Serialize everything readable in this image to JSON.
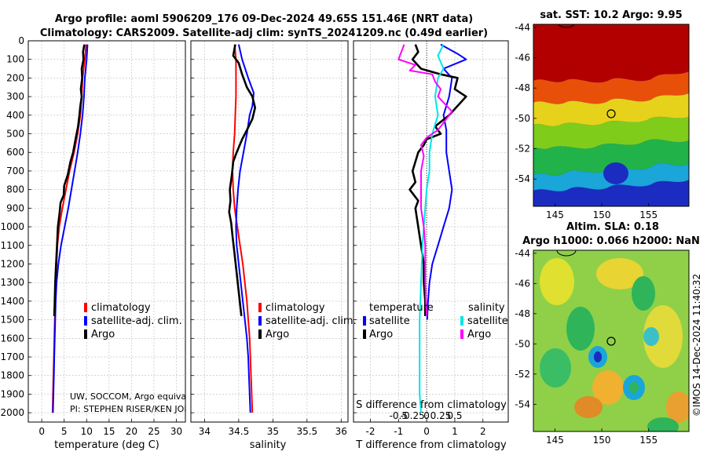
{
  "title": {
    "line1": "Argo profile: aoml 5906209_176 09-Dec-2024 49.65S 151.46E (NRT data)",
    "line2": "Climatology: CARS2009. Satellite-adj clim: synTS_20241209.nc (0.49d earlier)"
  },
  "colors": {
    "climatology": "#ff0000",
    "satellite": "#0000ff",
    "argo": "#000000",
    "sat_diff": "#00e5e5",
    "argo_sal_diff": "#ff00ff",
    "grid": "#bbbbbb"
  },
  "depth_ticks": [
    "0",
    "100",
    "200",
    "300",
    "400",
    "500",
    "600",
    "700",
    "800",
    "900",
    "1000",
    "1100",
    "1200",
    "1300",
    "1400",
    "1500",
    "1600",
    "1700",
    "1800",
    "1900",
    "2000"
  ],
  "annotation": {
    "line1": "UW, SOCCOM, Argo equivale",
    "line2": "PI: STEPHEN RISER/KEN JOHN"
  },
  "maps": {
    "sst": {
      "title": "sat. SST: 10.2 Argo: 9.95",
      "y_ticks": [
        "-44",
        "-46",
        "-48",
        "-50",
        "-52",
        "-54"
      ],
      "x_ticks": [
        "145",
        "150",
        "155"
      ]
    },
    "sla": {
      "title_line1": "Altim. SLA: 0.18",
      "title_line2": "Argo h1000: 0.066 h2000: NaN",
      "y_ticks": [
        "-44",
        "-46",
        "-48",
        "-50",
        "-52",
        "-54"
      ],
      "x_ticks": [
        "145",
        "150",
        "155"
      ]
    },
    "credit": "©IMOS 14-Dec-2024 11:40:32"
  },
  "chart_data": [
    {
      "type": "line",
      "name": "temperature",
      "xlabel": "temperature (deg C)",
      "ylabel": "",
      "xlim": [
        -3,
        32
      ],
      "ylim": [
        2050,
        0
      ],
      "x_ticks": [
        0,
        5,
        10,
        15,
        20,
        25,
        30
      ],
      "x_tick_labels": [
        "0",
        "5",
        "10",
        "15",
        "20",
        "25",
        "30"
      ],
      "legend": [
        "climatology",
        "satellite-adj. clim.",
        "Argo"
      ],
      "series": [
        {
          "name": "climatology",
          "color": "#ff0000",
          "points": [
            [
              9.9,
              20
            ],
            [
              9.6,
              100
            ],
            [
              9.1,
              200
            ],
            [
              8.9,
              300
            ],
            [
              8.6,
              400
            ],
            [
              8.0,
              500
            ],
            [
              7.2,
              600
            ],
            [
              6.2,
              700
            ],
            [
              5.4,
              800
            ],
            [
              4.6,
              900
            ],
            [
              3.9,
              1000
            ],
            [
              3.5,
              1100
            ],
            [
              3.3,
              1200
            ],
            [
              3.1,
              1300
            ],
            [
              3.0,
              1400
            ],
            [
              2.9,
              1500
            ],
            [
              2.8,
              1600
            ],
            [
              2.7,
              1700
            ],
            [
              2.6,
              1800
            ],
            [
              2.5,
              1900
            ],
            [
              2.4,
              2000
            ]
          ]
        },
        {
          "name": "satellite-adj. clim.",
          "color": "#0000ff",
          "points": [
            [
              10.2,
              20
            ],
            [
              10.0,
              100
            ],
            [
              9.6,
              200
            ],
            [
              9.4,
              300
            ],
            [
              9.1,
              400
            ],
            [
              8.6,
              500
            ],
            [
              8.0,
              600
            ],
            [
              7.3,
              700
            ],
            [
              6.6,
              800
            ],
            [
              5.9,
              900
            ],
            [
              5.1,
              1000
            ],
            [
              4.3,
              1100
            ],
            [
              3.7,
              1200
            ],
            [
              3.3,
              1300
            ],
            [
              3.1,
              1400
            ],
            [
              3.0,
              1500
            ],
            [
              2.9,
              1600
            ],
            [
              2.8,
              1700
            ],
            [
              2.7,
              1800
            ],
            [
              2.6,
              1900
            ],
            [
              2.5,
              2000
            ]
          ]
        },
        {
          "name": "Argo",
          "color": "#000000",
          "points": [
            [
              9.5,
              20
            ],
            [
              9.2,
              60
            ],
            [
              9.3,
              100
            ],
            [
              8.9,
              150
            ],
            [
              9.0,
              200
            ],
            [
              8.7,
              260
            ],
            [
              8.9,
              300
            ],
            [
              8.6,
              350
            ],
            [
              8.4,
              400
            ],
            [
              8.1,
              460
            ],
            [
              7.6,
              520
            ],
            [
              7.0,
              600
            ],
            [
              6.4,
              650
            ],
            [
              5.8,
              720
            ],
            [
              5.0,
              780
            ],
            [
              4.9,
              830
            ],
            [
              4.2,
              870
            ],
            [
              4.0,
              920
            ],
            [
              3.6,
              1000
            ],
            [
              3.4,
              1100
            ],
            [
              3.2,
              1200
            ],
            [
              3.0,
              1300
            ],
            [
              2.9,
              1400
            ],
            [
              2.8,
              1480
            ]
          ]
        }
      ]
    },
    {
      "type": "line",
      "name": "salinity",
      "xlabel": "salinity",
      "ylabel": "",
      "xlim": [
        33.8,
        36.1
      ],
      "ylim": [
        2050,
        0
      ],
      "x_ticks": [
        34,
        34.5,
        35,
        35.5,
        36
      ],
      "x_tick_labels": [
        "34",
        "34.5",
        "35",
        "35.5",
        "36"
      ],
      "legend": [
        "climatology",
        "satellite-adj. clim.",
        "Argo"
      ],
      "series": [
        {
          "name": "climatology",
          "color": "#ff0000",
          "points": [
            [
              34.44,
              20
            ],
            [
              34.46,
              100
            ],
            [
              34.46,
              200
            ],
            [
              34.46,
              300
            ],
            [
              34.45,
              400
            ],
            [
              34.44,
              500
            ],
            [
              34.42,
              600
            ],
            [
              34.41,
              700
            ],
            [
              34.42,
              800
            ],
            [
              34.44,
              900
            ],
            [
              34.48,
              1000
            ],
            [
              34.52,
              1100
            ],
            [
              34.56,
              1200
            ],
            [
              34.59,
              1300
            ],
            [
              34.62,
              1400
            ],
            [
              34.64,
              1500
            ],
            [
              34.66,
              1600
            ],
            [
              34.67,
              1700
            ],
            [
              34.68,
              1800
            ],
            [
              34.69,
              1900
            ],
            [
              34.7,
              2000
            ]
          ]
        },
        {
          "name": "satellite-adj. clim.",
          "color": "#0000ff",
          "points": [
            [
              34.5,
              20
            ],
            [
              34.55,
              100
            ],
            [
              34.64,
              200
            ],
            [
              34.72,
              280
            ],
            [
              34.7,
              350
            ],
            [
              34.66,
              400
            ],
            [
              34.62,
              500
            ],
            [
              34.57,
              600
            ],
            [
              34.52,
              700
            ],
            [
              34.49,
              800
            ],
            [
              34.47,
              900
            ],
            [
              34.46,
              1000
            ],
            [
              34.47,
              1100
            ],
            [
              34.5,
              1200
            ],
            [
              34.53,
              1300
            ],
            [
              34.56,
              1400
            ],
            [
              34.59,
              1500
            ],
            [
              34.62,
              1600
            ],
            [
              34.64,
              1700
            ],
            [
              34.65,
              1800
            ],
            [
              34.66,
              1900
            ],
            [
              34.67,
              2000
            ]
          ]
        },
        {
          "name": "Argo",
          "color": "#000000",
          "points": [
            [
              34.45,
              20
            ],
            [
              34.42,
              80
            ],
            [
              34.5,
              120
            ],
            [
              34.55,
              180
            ],
            [
              34.62,
              250
            ],
            [
              34.7,
              300
            ],
            [
              34.74,
              360
            ],
            [
              34.7,
              420
            ],
            [
              34.62,
              480
            ],
            [
              34.55,
              530
            ],
            [
              34.47,
              600
            ],
            [
              34.42,
              650
            ],
            [
              34.4,
              720
            ],
            [
              34.37,
              800
            ],
            [
              34.38,
              860
            ],
            [
              34.36,
              920
            ],
            [
              34.39,
              980
            ],
            [
              34.41,
              1050
            ],
            [
              34.44,
              1150
            ],
            [
              34.47,
              1250
            ],
            [
              34.5,
              1350
            ],
            [
              34.53,
              1450
            ],
            [
              34.54,
              1480
            ]
          ]
        }
      ]
    },
    {
      "type": "line",
      "name": "differences",
      "xlabel": "T difference from climatology",
      "ylabel": "",
      "top_xlabel": "S difference from climatology",
      "xlim": [
        -2.6,
        2.9
      ],
      "ylim": [
        2050,
        0
      ],
      "x_ticks": [
        -2,
        -1,
        0,
        1,
        2
      ],
      "x_tick_labels": [
        "-2",
        "-1",
        "0",
        "1",
        "2"
      ],
      "top_ticks": [
        -1,
        -0.5,
        0,
        0.5,
        1
      ],
      "top_tick_labels": [
        "-0.5",
        "-0.25",
        "0",
        "0.25",
        "0.5"
      ],
      "legend_temperature_header": "temperature",
      "legend_salinity_header": "salinity",
      "legend_temperature": [
        "satellite",
        "Argo"
      ],
      "legend_salinity": [
        "satellite",
        "Argo"
      ],
      "series": [
        {
          "name": "temperature satellite",
          "color": "#0000ff",
          "points": [
            [
              0.5,
              20
            ],
            [
              1.1,
              70
            ],
            [
              1.4,
              100
            ],
            [
              0.6,
              150
            ],
            [
              0.9,
              200
            ],
            [
              0.8,
              300
            ],
            [
              0.6,
              400
            ],
            [
              0.7,
              480
            ],
            [
              0.7,
              600
            ],
            [
              0.8,
              700
            ],
            [
              0.9,
              800
            ],
            [
              0.8,
              900
            ],
            [
              0.6,
              1000
            ],
            [
              0.4,
              1100
            ],
            [
              0.2,
              1200
            ],
            [
              0.1,
              1300
            ],
            [
              0.05,
              1400
            ],
            [
              0.02,
              1500
            ]
          ]
        },
        {
          "name": "temperature Argo",
          "color": "#000000",
          "points": [
            [
              -0.4,
              20
            ],
            [
              -0.3,
              60
            ],
            [
              -0.5,
              100
            ],
            [
              -0.2,
              150
            ],
            [
              0.5,
              180
            ],
            [
              1.1,
              200
            ],
            [
              1.0,
              260
            ],
            [
              1.4,
              300
            ],
            [
              0.8,
              400
            ],
            [
              0.3,
              460
            ],
            [
              0.5,
              500
            ],
            [
              0.0,
              530
            ],
            [
              -0.1,
              560
            ],
            [
              -0.3,
              600
            ],
            [
              -0.5,
              700
            ],
            [
              -0.4,
              760
            ],
            [
              -0.6,
              800
            ],
            [
              -0.3,
              860
            ],
            [
              -0.4,
              900
            ],
            [
              -0.3,
              1000
            ],
            [
              -0.2,
              1100
            ],
            [
              -0.1,
              1200
            ],
            [
              -0.1,
              1300
            ],
            [
              -0.05,
              1400
            ],
            [
              -0.05,
              1480
            ]
          ]
        },
        {
          "name": "salinity satellite",
          "color": "#00e5e5",
          "points": [
            [
              0.6,
              20
            ],
            [
              0.4,
              80
            ],
            [
              0.6,
              150
            ],
            [
              0.4,
              200
            ],
            [
              0.3,
              300
            ],
            [
              0.4,
              400
            ],
            [
              0.2,
              500
            ],
            [
              0.1,
              600
            ],
            [
              0.1,
              700
            ],
            [
              0.0,
              800
            ],
            [
              -0.05,
              900
            ],
            [
              -0.1,
              1000
            ],
            [
              -0.15,
              1100
            ],
            [
              -0.2,
              1300
            ],
            [
              -0.25,
              1500
            ],
            [
              -0.25,
              1700
            ],
            [
              -0.25,
              1900
            ],
            [
              -0.2,
              2000
            ]
          ]
        },
        {
          "name": "salinity Argo",
          "color": "#ff00ff",
          "points": [
            [
              -0.8,
              20
            ],
            [
              -1.0,
              100
            ],
            [
              -0.4,
              130
            ],
            [
              -0.6,
              160
            ],
            [
              0.2,
              180
            ],
            [
              0.3,
              220
            ],
            [
              0.5,
              260
            ],
            [
              0.4,
              300
            ],
            [
              0.9,
              380
            ],
            [
              0.7,
              420
            ],
            [
              0.4,
              480
            ],
            [
              0.0,
              520
            ],
            [
              -0.2,
              560
            ],
            [
              -0.1,
              620
            ],
            [
              -0.2,
              700
            ],
            [
              -0.2,
              800
            ],
            [
              -0.2,
              900
            ],
            [
              -0.1,
              1000
            ],
            [
              -0.05,
              1100
            ],
            [
              -0.05,
              1300
            ],
            [
              0.0,
              1480
            ]
          ]
        }
      ]
    }
  ]
}
